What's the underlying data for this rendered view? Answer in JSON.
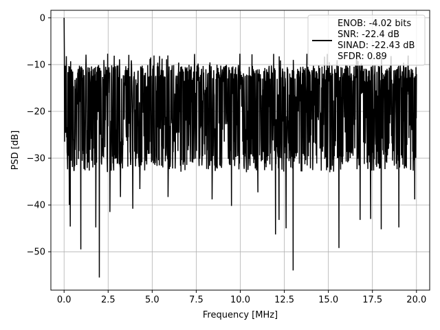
{
  "chart_data": {
    "type": "line",
    "xlabel": "Frequency [MHz]",
    "ylabel": "PSD [dB]",
    "xlim": [
      -0.75,
      20.75
    ],
    "ylim": [
      -58.2,
      1.6
    ],
    "xticks": [
      0.0,
      2.5,
      5.0,
      7.5,
      10.0,
      12.5,
      15.0,
      17.5,
      20.0
    ],
    "xtick_labels": [
      "0.0",
      "2.5",
      "5.0",
      "7.5",
      "10.0",
      "12.5",
      "15.0",
      "17.5",
      "20.0"
    ],
    "yticks": [
      0,
      -10,
      -20,
      -30,
      -40,
      -50
    ],
    "ytick_labels": [
      "0",
      "−10",
      "−20",
      "−30",
      "−40",
      "−50"
    ],
    "grid": true,
    "legend": {
      "placement": "top-right",
      "entries": [
        "ENOB: -4.02 bits",
        "SNR: -22.4 dB",
        "SINAD: -22.43 dB",
        "SFDR: 0.89"
      ]
    },
    "series": [
      {
        "color": "#000000",
        "x_range": [
          0,
          20
        ],
        "peak": {
          "x": 0.0,
          "y": 0
        },
        "band_top": -10,
        "band_bottom": -28,
        "notches": [
          {
            "x": 0.3,
            "y": -40
          },
          {
            "x": 0.35,
            "y": -44.6
          },
          {
            "x": 0.95,
            "y": -49.5
          },
          {
            "x": 1.8,
            "y": -44.8
          },
          {
            "x": 2.0,
            "y": -55.5
          },
          {
            "x": 2.6,
            "y": -41.5
          },
          {
            "x": 3.2,
            "y": -38.3
          },
          {
            "x": 3.9,
            "y": -40.8
          },
          {
            "x": 4.3,
            "y": -36.6
          },
          {
            "x": 5.9,
            "y": -38.3
          },
          {
            "x": 8.4,
            "y": -38.8
          },
          {
            "x": 9.5,
            "y": -40.2
          },
          {
            "x": 11.0,
            "y": -37.3
          },
          {
            "x": 12.0,
            "y": -46.3
          },
          {
            "x": 12.2,
            "y": -43.2
          },
          {
            "x": 12.6,
            "y": -45.0
          },
          {
            "x": 13.0,
            "y": -54.0
          },
          {
            "x": 15.6,
            "y": -49.2
          },
          {
            "x": 16.8,
            "y": -43.2
          },
          {
            "x": 17.4,
            "y": -43.0
          },
          {
            "x": 18.0,
            "y": -45.2
          },
          {
            "x": 19.0,
            "y": -44.8
          },
          {
            "x": 19.9,
            "y": -38.8
          }
        ]
      }
    ]
  }
}
